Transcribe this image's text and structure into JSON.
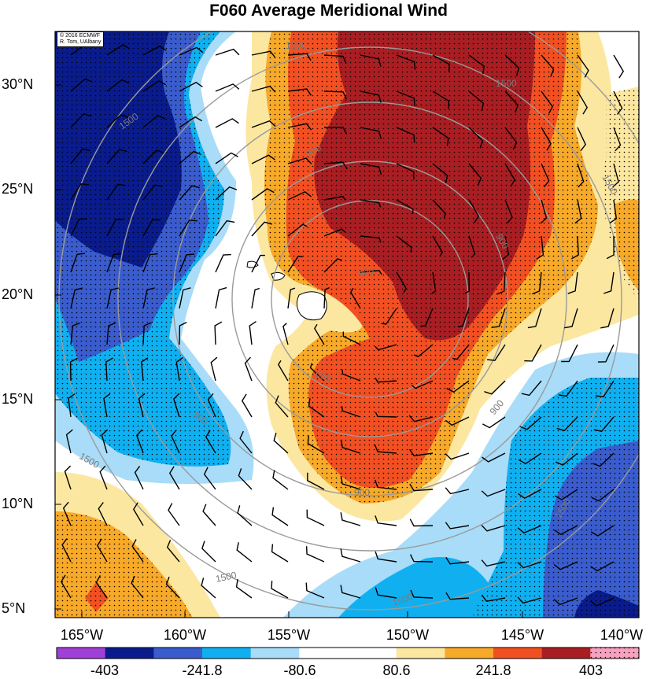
{
  "title": "F060 Average Meridional Wind",
  "credit": {
    "line1": "© 2016 ECMWF",
    "line2": "R. Tom, UAlbany"
  },
  "latitude_labels": [
    "30°N",
    "25°N",
    "20°N",
    "15°N",
    "10°N",
    "5°N"
  ],
  "longitude_labels": [
    "165°W",
    "160°W",
    "155°W",
    "150°W",
    "145°W",
    "140°W"
  ],
  "colorbar": {
    "tick_labels": [
      "-403",
      "-241.8",
      "-80.6",
      "80.6",
      "241.8",
      "403"
    ],
    "colors": [
      "#a040d8",
      "#0a1c8c",
      "#3a5ccc",
      "#10b0f0",
      "#a8dcf8",
      "#ffffff",
      "#ffffff",
      "#fce7a0",
      "#f7a92a",
      "#f25022",
      "#a81e22",
      "#f8a0c0"
    ]
  },
  "contour_labels": [
    "1500",
    "900",
    "600"
  ],
  "chart_data": {
    "type": "heatmap",
    "title": "F060 Average Meridional Wind",
    "field": "meridional wind",
    "lon_range": [
      "165°W",
      "140°W"
    ],
    "lat_range": [
      "5°N",
      "30°N"
    ],
    "levels": [
      -403,
      -241.8,
      -80.6,
      80.6,
      241.8,
      403
    ],
    "contour_values": [
      600,
      900,
      1500
    ],
    "overlays": [
      "wind barbs",
      "stippling",
      "concentric contours"
    ]
  }
}
